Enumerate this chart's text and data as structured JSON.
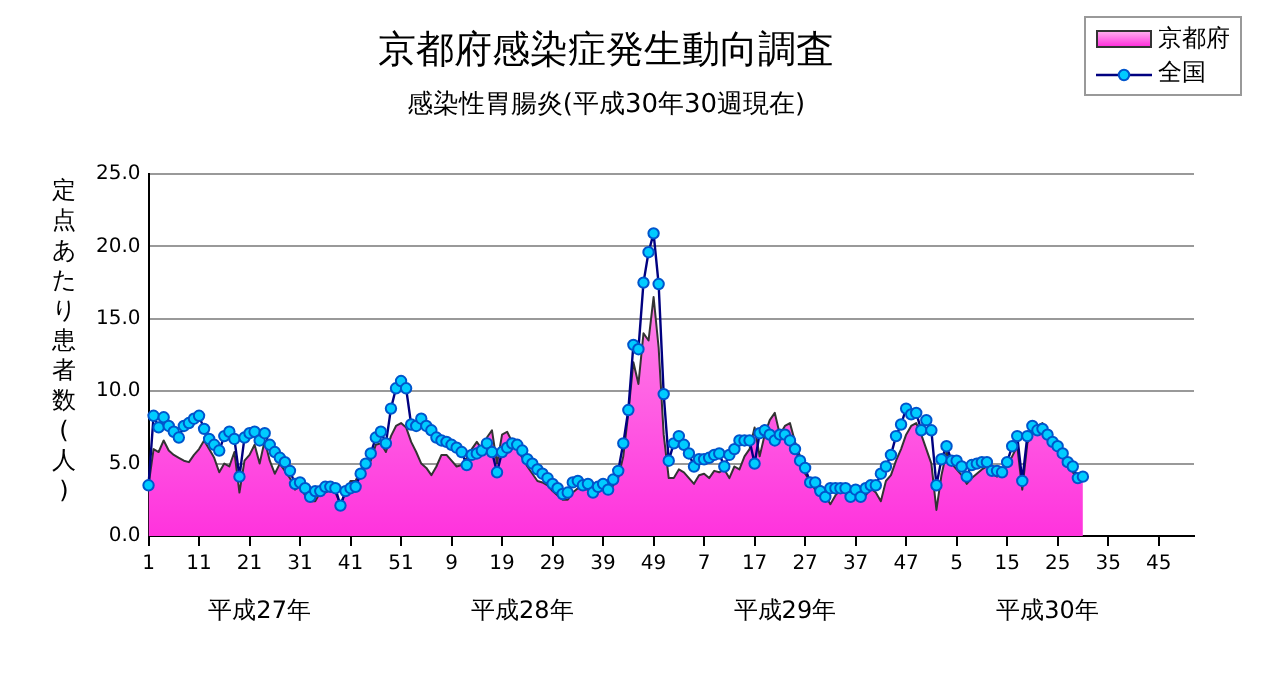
{
  "chart_data": {
    "type": "area",
    "title": "京都府感染症発生動向調査",
    "subtitle": "感染性胃腸炎(平成30年30週現在)",
    "ylabel": "定点あたり患者数(人)",
    "categories": [
      "1",
      null,
      null,
      null,
      null,
      null,
      null,
      null,
      null,
      null,
      "11",
      null,
      null,
      null,
      null,
      null,
      null,
      null,
      null,
      null,
      "21",
      null,
      null,
      null,
      null,
      null,
      null,
      null,
      null,
      null,
      "31",
      null,
      null,
      null,
      null,
      null,
      null,
      null,
      null,
      null,
      "41",
      null,
      null,
      null,
      null,
      null,
      null,
      null,
      null,
      null,
      "51",
      null,
      null,
      null,
      null,
      null,
      null,
      null,
      null,
      null,
      "9",
      null,
      null,
      null,
      null,
      null,
      null,
      null,
      null,
      null,
      "19",
      null,
      null,
      null,
      null,
      null,
      null,
      null,
      null,
      null,
      "29",
      null,
      null,
      null,
      null,
      null,
      null,
      null,
      null,
      null,
      "39",
      null,
      null,
      null,
      null,
      null,
      null,
      null,
      null,
      null,
      "49",
      null,
      null,
      null,
      null,
      null,
      null,
      null,
      null,
      null,
      "7",
      null,
      null,
      null,
      null,
      null,
      null,
      null,
      null,
      null,
      "17",
      null,
      null,
      null,
      null,
      null,
      null,
      null,
      null,
      null,
      "27",
      null,
      null,
      null,
      null,
      null,
      null,
      null,
      null,
      null,
      "37",
      null,
      null,
      null,
      null,
      null,
      null,
      null,
      null,
      null,
      "47",
      null,
      null,
      null,
      null,
      null,
      null,
      null,
      null,
      null,
      "5",
      null,
      null,
      null,
      null,
      null,
      null,
      null,
      null,
      null,
      "15",
      null,
      null,
      null,
      null,
      null,
      null,
      null,
      null,
      null,
      "25",
      null,
      null,
      null,
      null,
      null,
      null,
      null,
      null,
      null,
      "35",
      null,
      null,
      null,
      null,
      null,
      null,
      null,
      null,
      null,
      "45",
      null,
      null,
      null,
      null,
      null,
      null,
      null
    ],
    "series": [
      {
        "name": "京都府",
        "type": "area",
        "color": "#ff33dd",
        "values": [
          3.5,
          6.0,
          5.8,
          6.6,
          5.9,
          5.6,
          5.4,
          5.2,
          5.1,
          5.6,
          6.0,
          6.6,
          6.0,
          5.4,
          4.4,
          5.0,
          4.8,
          5.8,
          3.0,
          5.2,
          5.6,
          6.3,
          5.0,
          6.6,
          5.2,
          4.3,
          5.0,
          4.5,
          4.0,
          3.2,
          3.5,
          2.8,
          2.4,
          2.4,
          3.0,
          3.0,
          3.2,
          3.0,
          2.2,
          3.0,
          3.8,
          3.8,
          4.6,
          5.0,
          5.2,
          6.3,
          6.4,
          5.8,
          6.9,
          7.6,
          7.8,
          7.5,
          6.5,
          5.8,
          5.0,
          4.7,
          4.2,
          4.8,
          5.6,
          5.6,
          5.2,
          4.8,
          4.9,
          5.4,
          6.0,
          6.5,
          6.0,
          6.8,
          7.3,
          5.0,
          7.0,
          7.2,
          6.5,
          6.0,
          5.4,
          4.8,
          4.3,
          3.8,
          3.7,
          3.5,
          3.1,
          2.8,
          2.5,
          2.5,
          3.0,
          3.3,
          3.3,
          3.2,
          3.0,
          3.0,
          3.3,
          3.0,
          3.5,
          4.0,
          5.5,
          8.5,
          12.0,
          10.5,
          14.0,
          13.5,
          16.5,
          13.0,
          7.0,
          4.0,
          4.0,
          4.6,
          4.4,
          4.0,
          3.6,
          4.2,
          4.3,
          4.0,
          4.5,
          4.4,
          4.6,
          4.0,
          4.8,
          4.6,
          5.5,
          6.0,
          7.5,
          5.5,
          7.0,
          8.0,
          8.5,
          7.0,
          7.6,
          7.8,
          6.5,
          5.5,
          4.3,
          3.8,
          3.2,
          3.5,
          2.8,
          2.2,
          2.8,
          3.2,
          3.0,
          3.0,
          2.8,
          3.0,
          2.8,
          3.3,
          3.0,
          2.4,
          3.8,
          4.2,
          5.2,
          6.0,
          7.0,
          7.6,
          7.8,
          7.0,
          6.0,
          5.0,
          1.8,
          4.2,
          5.8,
          5.0,
          4.6,
          4.2,
          3.6,
          4.0,
          4.3,
          4.6,
          4.8,
          4.3,
          4.1,
          4.5,
          4.8,
          5.5,
          6.2,
          3.2,
          6.4,
          7.2,
          7.6,
          7.8,
          7.0,
          6.4,
          6.0,
          5.4,
          5.0,
          4.4,
          4.0,
          4.2,
          null,
          null,
          null,
          null,
          null,
          null,
          null,
          null,
          null,
          null,
          null,
          null,
          null,
          null,
          null,
          null,
          null,
          null,
          null,
          null,
          null,
          null
        ]
      },
      {
        "name": "全国",
        "type": "line",
        "marker": "circle",
        "color": "#00ccff",
        "values": [
          3.5,
          8.3,
          7.5,
          8.2,
          7.6,
          7.2,
          6.8,
          7.6,
          7.8,
          8.1,
          8.3,
          7.4,
          6.7,
          6.3,
          5.9,
          6.9,
          7.2,
          6.7,
          4.1,
          6.8,
          7.1,
          7.2,
          6.6,
          7.1,
          6.3,
          5.8,
          5.4,
          5.1,
          4.5,
          3.6,
          3.7,
          3.3,
          2.7,
          3.1,
          3.1,
          3.4,
          3.4,
          3.3,
          2.1,
          3.1,
          3.3,
          3.4,
          4.3,
          5.0,
          5.7,
          6.8,
          7.2,
          6.4,
          8.8,
          10.2,
          10.7,
          10.2,
          7.7,
          7.6,
          8.1,
          7.6,
          7.3,
          6.8,
          6.6,
          6.5,
          6.3,
          6.1,
          5.8,
          4.9,
          5.6,
          5.7,
          5.9,
          6.4,
          5.8,
          4.4,
          5.8,
          6.1,
          6.4,
          6.3,
          5.9,
          5.3,
          5.0,
          4.6,
          4.3,
          4.0,
          3.6,
          3.3,
          2.9,
          3.0,
          3.7,
          3.8,
          3.5,
          3.6,
          3.0,
          3.4,
          3.6,
          3.2,
          3.9,
          4.5,
          6.4,
          8.7,
          13.2,
          12.9,
          17.5,
          19.6,
          20.9,
          17.4,
          9.8,
          5.2,
          6.4,
          6.9,
          6.3,
          5.7,
          4.8,
          5.3,
          5.3,
          5.4,
          5.6,
          5.7,
          4.8,
          5.6,
          6.0,
          6.6,
          6.6,
          6.6,
          5.0,
          7.1,
          7.3,
          7.0,
          6.6,
          7.0,
          7.0,
          6.6,
          6.0,
          5.2,
          4.7,
          3.7,
          3.7,
          3.1,
          2.7,
          3.3,
          3.3,
          3.3,
          3.3,
          2.7,
          3.2,
          2.7,
          3.3,
          3.5,
          3.5,
          4.3,
          4.8,
          5.6,
          6.9,
          7.7,
          8.8,
          8.4,
          8.5,
          7.3,
          8.0,
          7.3,
          3.5,
          5.3,
          6.2,
          5.2,
          5.2,
          4.8,
          4.1,
          4.9,
          5.0,
          5.1,
          5.1,
          4.5,
          4.5,
          4.4,
          5.1,
          6.2,
          6.9,
          3.8,
          6.9,
          7.6,
          7.3,
          7.4,
          7.0,
          6.5,
          6.2,
          5.7,
          5.1,
          4.8,
          4.0,
          4.1,
          null,
          null,
          null,
          null,
          null,
          null,
          null,
          null,
          null,
          null,
          null,
          null,
          null,
          null,
          null,
          null,
          null,
          null,
          null,
          null,
          null,
          null
        ]
      }
    ],
    "ylim": [
      0,
      25
    ],
    "yticks": [
      {
        "value": 0,
        "label": "0.0"
      },
      {
        "value": 5,
        "label": "5.0"
      },
      {
        "value": 10,
        "label": "10.0"
      },
      {
        "value": 15,
        "label": "15.0"
      },
      {
        "value": 20,
        "label": "20.0"
      },
      {
        "value": 25,
        "label": "25.0"
      }
    ],
    "grid": "y",
    "legend": "top right",
    "annotations": [
      "平成27年",
      "平成28年",
      "平成29年",
      "平成30年"
    ]
  }
}
